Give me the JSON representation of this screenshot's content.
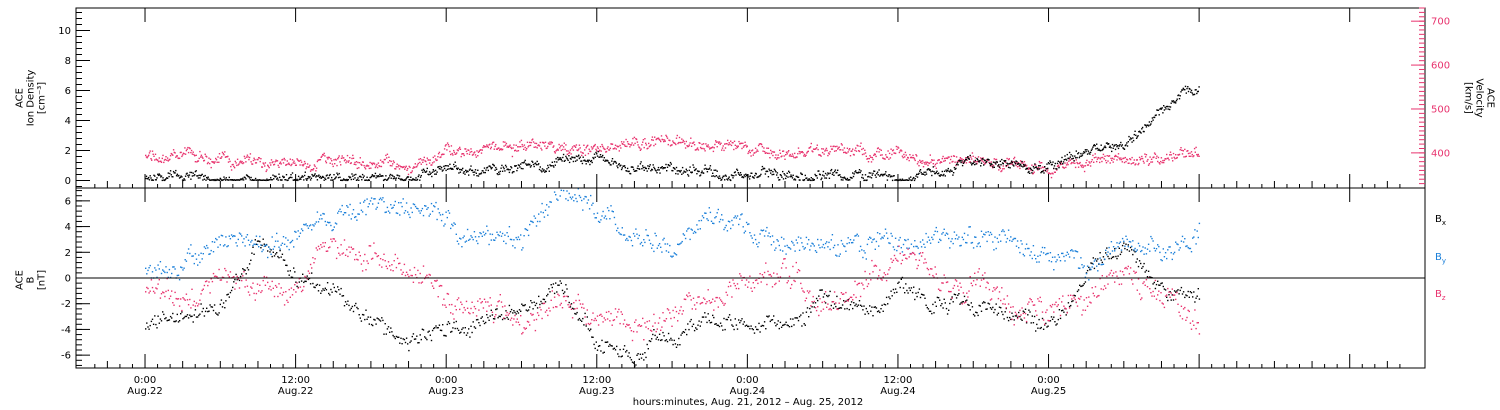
{
  "chart_data": [
    {
      "type": "scatter",
      "panel": "top",
      "y_left": {
        "label_lines": [
          "ACE",
          "Ion Density",
          "[cm⁻³]"
        ],
        "ticks": [
          0,
          2,
          4,
          6,
          8,
          10
        ],
        "ylim": [
          -0.5,
          11.5
        ],
        "color": "#000000"
      },
      "y_right": {
        "label_lines": [
          "ACE",
          "Velocity",
          "[km/s]"
        ],
        "ticks": [
          400,
          500,
          600,
          700
        ],
        "ylim": [
          320,
          730
        ],
        "color": "#e8336e"
      },
      "series": [
        {
          "axis": "left",
          "color": "#000000",
          "x": [
            0,
            3,
            6,
            9,
            12,
            15,
            18,
            21,
            24,
            27,
            30,
            33,
            36,
            39,
            42,
            45,
            48,
            51,
            54,
            57,
            60,
            63,
            66,
            69,
            72,
            75,
            78,
            81,
            84
          ],
          "values": [
            0.1,
            0.1,
            0.1,
            0.1,
            0.1,
            0.1,
            0.2,
            0.15,
            0.8,
            0.7,
            1.0,
            1.2,
            1.5,
            0.9,
            1.0,
            0.7,
            0.4,
            0.3,
            0.3,
            0.5,
            0.4,
            0.6,
            1.2,
            1.0,
            0.8,
            1.8,
            2.5,
            4.5,
            6.5
          ]
        },
        {
          "axis": "right",
          "color": "#e8336e",
          "x": [
            0,
            3,
            6,
            9,
            12,
            15,
            18,
            21,
            24,
            27,
            30,
            33,
            36,
            39,
            42,
            45,
            48,
            51,
            54,
            57,
            60,
            63,
            66,
            69,
            72,
            75,
            78,
            81,
            84
          ],
          "values": [
            400,
            395,
            385,
            380,
            378,
            382,
            378,
            375,
            408,
            412,
            418,
            415,
            410,
            420,
            428,
            418,
            405,
            400,
            402,
            398,
            398,
            390,
            380,
            370,
            360,
            375,
            385,
            390,
            398
          ]
        }
      ]
    },
    {
      "type": "scatter",
      "panel": "bottom",
      "y_left": {
        "label_lines": [
          "ACE",
          "B",
          "[nT]"
        ],
        "ticks": [
          -6,
          -4,
          -2,
          0,
          2,
          4,
          6
        ],
        "ylim": [
          -7,
          7
        ],
        "color": "#000000"
      },
      "zero_line": true,
      "series": [
        {
          "name": "B",
          "subscript": "x",
          "color": "#000000",
          "x": [
            0,
            3,
            6,
            9,
            12,
            15,
            18,
            21,
            24,
            27,
            30,
            33,
            36,
            39,
            42,
            45,
            48,
            51,
            54,
            57,
            60,
            63,
            66,
            69,
            72,
            75,
            78,
            81,
            84
          ],
          "values": [
            -3.5,
            -3.3,
            -2.5,
            2.5,
            0.5,
            -1.0,
            -3.5,
            -5.0,
            -4.0,
            -3.5,
            -1.5,
            -1.0,
            -5.0,
            -6.0,
            -4.0,
            -3.5,
            -3.5,
            -3.0,
            -2.0,
            -2.5,
            -1.0,
            -1.5,
            -2.0,
            -3.0,
            -3.5,
            0.5,
            2.5,
            -1.0,
            -2.0
          ]
        },
        {
          "name": "B",
          "subscript": "y",
          "color": "#1a7fd9",
          "x": [
            0,
            3,
            6,
            9,
            12,
            15,
            18,
            21,
            24,
            27,
            30,
            33,
            36,
            39,
            42,
            45,
            48,
            51,
            54,
            57,
            60,
            63,
            66,
            69,
            72,
            75,
            78,
            81,
            84
          ],
          "values": [
            0.5,
            1.0,
            2.5,
            2.8,
            4.0,
            4.5,
            6.0,
            5.5,
            4.0,
            3.5,
            2.5,
            6.5,
            4.5,
            3.5,
            3.0,
            5.0,
            3.5,
            2.5,
            2.0,
            2.5,
            3.5,
            3.0,
            2.8,
            2.5,
            2.0,
            1.0,
            2.5,
            1.5,
            3.5
          ]
        },
        {
          "name": "B",
          "subscript": "z",
          "color": "#e8336e",
          "x": [
            0,
            3,
            6,
            9,
            12,
            15,
            18,
            21,
            24,
            27,
            30,
            33,
            36,
            39,
            42,
            45,
            48,
            51,
            54,
            57,
            60,
            63,
            66,
            69,
            72,
            75,
            78,
            81,
            84
          ],
          "values": [
            -0.5,
            -1.0,
            0.5,
            -0.5,
            -1.0,
            2.5,
            2.5,
            1.5,
            -2.0,
            -3.0,
            -3.5,
            -2.5,
            -3.5,
            -4.5,
            -3.0,
            -2.0,
            -1.0,
            0.5,
            -1.5,
            -1.0,
            2.0,
            0.5,
            -0.5,
            -2.5,
            -3.5,
            -1.5,
            0.5,
            -1.0,
            -3.0
          ]
        }
      ]
    }
  ],
  "x_axis": {
    "xlim": [
      -5.5,
      102
    ],
    "ticks": [
      {
        "x": 0,
        "time": "0:00",
        "date": "Aug.22"
      },
      {
        "x": 12,
        "time": "12:00",
        "date": "Aug.22"
      },
      {
        "x": 24,
        "time": "0:00",
        "date": "Aug.23"
      },
      {
        "x": 36,
        "time": "12:00",
        "date": "Aug.23"
      },
      {
        "x": 48,
        "time": "0:00",
        "date": "Aug.24"
      },
      {
        "x": 60,
        "time": "12:00",
        "date": "Aug.24"
      },
      {
        "x": 72,
        "time": "0:00",
        "date": "Aug.25"
      }
    ],
    "title": "hours:minutes, Aug. 21, 2012 – Aug. 25, 2012"
  }
}
